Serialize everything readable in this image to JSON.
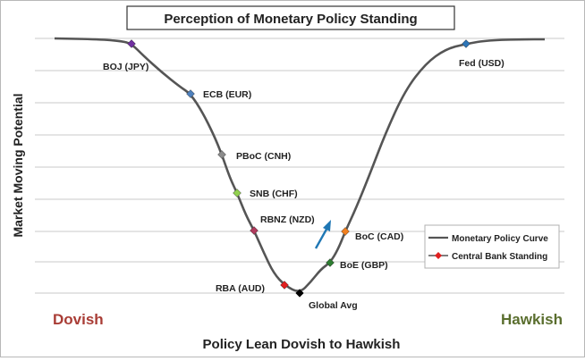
{
  "chart_data": {
    "type": "line",
    "title": "Perception of Monetary Policy Standing",
    "xlabel": "Policy Lean Dovish to Hawkish",
    "ylabel": "Market Moving Potential",
    "grid": true,
    "legend_position": "bottom-right",
    "axis_end_labels": {
      "left": "Dovish",
      "right": "Hawkish"
    },
    "legend": [
      {
        "name": "Monetary Policy Curve",
        "marker": "line"
      },
      {
        "name": "Central Bank Standing",
        "marker": "diamond"
      }
    ],
    "colors": {
      "curve": "#555555",
      "dovish": "#a93d36",
      "hawkish": "#5a6e2e",
      "arrow": "#1f77b4",
      "grid": "#c8c8c8"
    },
    "banks": [
      {
        "label": "BOJ (JPY)",
        "color": "#7030a0"
      },
      {
        "label": "ECB (EUR)",
        "color": "#4f81bd"
      },
      {
        "label": "PBoC (CNH)",
        "color": "#8c8c8c"
      },
      {
        "label": "SNB (CHF)",
        "color": "#92d050"
      },
      {
        "label": "RBNZ (NZD)",
        "color": "#b03a5c"
      },
      {
        "label": "RBA (AUD)",
        "color": "#e02020"
      },
      {
        "label": "Global Avg",
        "color": "#000000"
      },
      {
        "label": "BoE (GBP)",
        "color": "#2e7d32"
      },
      {
        "label": "BoC (CAD)",
        "color": "#f08020"
      },
      {
        "label": "Fed (USD)",
        "color": "#2e75b6"
      }
    ]
  }
}
